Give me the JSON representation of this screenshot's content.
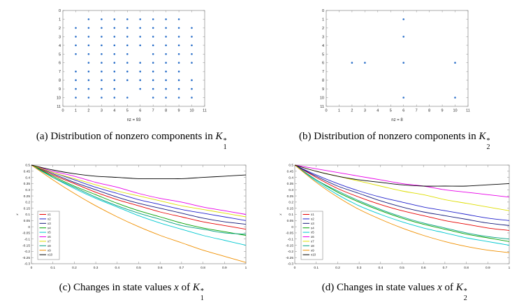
{
  "page": {
    "background": "#ffffff"
  },
  "captions": {
    "a": {
      "prefix": "(a) Distribution of nonzero components in ",
      "symbol": "K",
      "sup": "*",
      "sub": "1"
    },
    "b": {
      "prefix": "(b) Distribution of nonzero components in ",
      "symbol": "K",
      "sup": "*",
      "sub": "2"
    },
    "c": {
      "prefix": "(c) Changes in state values ",
      "var": "x",
      "mid": " of ",
      "symbol": "K",
      "sup": "*",
      "sub": "1"
    },
    "d": {
      "prefix": "(d) Changes in state values ",
      "var": "x",
      "mid": " of ",
      "symbol": "K",
      "sup": "*",
      "sub": "2"
    }
  },
  "chart_data": [
    {
      "id": "spy-k1",
      "type": "scatter",
      "title": "",
      "xlabel": "nz = 93",
      "ylabel": "",
      "xlim": [
        0,
        11
      ],
      "ylim": [
        0,
        11
      ],
      "y_inverted": true,
      "grid": false,
      "xticks": [
        0,
        1,
        2,
        3,
        4,
        5,
        6,
        7,
        8,
        9,
        10,
        11
      ],
      "yticks": [
        0,
        1,
        2,
        3,
        4,
        5,
        6,
        7,
        8,
        9,
        10,
        11
      ],
      "marker_color": "#2a6fc9",
      "points": [
        [
          2,
          1
        ],
        [
          3,
          1
        ],
        [
          4,
          1
        ],
        [
          5,
          1
        ],
        [
          6,
          1
        ],
        [
          7,
          1
        ],
        [
          8,
          1
        ],
        [
          9,
          1
        ],
        [
          1,
          2
        ],
        [
          2,
          2
        ],
        [
          3,
          2
        ],
        [
          4,
          2
        ],
        [
          5,
          2
        ],
        [
          6,
          2
        ],
        [
          7,
          2
        ],
        [
          8,
          2
        ],
        [
          9,
          2
        ],
        [
          10,
          2
        ],
        [
          1,
          3
        ],
        [
          2,
          3
        ],
        [
          3,
          3
        ],
        [
          4,
          3
        ],
        [
          5,
          3
        ],
        [
          6,
          3
        ],
        [
          7,
          3
        ],
        [
          8,
          3
        ],
        [
          9,
          3
        ],
        [
          10,
          3
        ],
        [
          1,
          4
        ],
        [
          2,
          4
        ],
        [
          3,
          4
        ],
        [
          4,
          4
        ],
        [
          5,
          4
        ],
        [
          6,
          4
        ],
        [
          7,
          4
        ],
        [
          8,
          4
        ],
        [
          9,
          4
        ],
        [
          10,
          4
        ],
        [
          1,
          5
        ],
        [
          2,
          5
        ],
        [
          3,
          5
        ],
        [
          4,
          5
        ],
        [
          5,
          5
        ],
        [
          7,
          5
        ],
        [
          8,
          5
        ],
        [
          9,
          5
        ],
        [
          10,
          5
        ],
        [
          2,
          6
        ],
        [
          3,
          6
        ],
        [
          4,
          6
        ],
        [
          5,
          6
        ],
        [
          6,
          6
        ],
        [
          7,
          6
        ],
        [
          8,
          6
        ],
        [
          9,
          6
        ],
        [
          10,
          6
        ],
        [
          1,
          7
        ],
        [
          2,
          7
        ],
        [
          3,
          7
        ],
        [
          4,
          7
        ],
        [
          5,
          7
        ],
        [
          6,
          7
        ],
        [
          7,
          7
        ],
        [
          8,
          7
        ],
        [
          9,
          7
        ],
        [
          1,
          8
        ],
        [
          2,
          8
        ],
        [
          3,
          8
        ],
        [
          4,
          8
        ],
        [
          5,
          8
        ],
        [
          6,
          8
        ],
        [
          7,
          8
        ],
        [
          8,
          8
        ],
        [
          9,
          8
        ],
        [
          10,
          8
        ],
        [
          1,
          9
        ],
        [
          2,
          9
        ],
        [
          3,
          9
        ],
        [
          4,
          9
        ],
        [
          6,
          9
        ],
        [
          7,
          9
        ],
        [
          8,
          9
        ],
        [
          9,
          9
        ],
        [
          10,
          9
        ],
        [
          1,
          10
        ],
        [
          2,
          10
        ],
        [
          3,
          10
        ],
        [
          4,
          10
        ],
        [
          5,
          10
        ],
        [
          7,
          10
        ],
        [
          8,
          10
        ],
        [
          9,
          10
        ],
        [
          10,
          10
        ]
      ]
    },
    {
      "id": "spy-k2",
      "type": "scatter",
      "title": "",
      "xlabel": "nz = 8",
      "ylabel": "",
      "xlim": [
        0,
        11
      ],
      "ylim": [
        0,
        11
      ],
      "y_inverted": true,
      "grid": false,
      "xticks": [
        0,
        1,
        2,
        3,
        4,
        5,
        6,
        7,
        8,
        9,
        10,
        11
      ],
      "yticks": [
        0,
        1,
        2,
        3,
        4,
        5,
        6,
        7,
        8,
        9,
        10,
        11
      ],
      "marker_color": "#2a6fc9",
      "points": [
        [
          6,
          1
        ],
        [
          6,
          3
        ],
        [
          2,
          6
        ],
        [
          3,
          6
        ],
        [
          6,
          6
        ],
        [
          10,
          6
        ],
        [
          6,
          10
        ],
        [
          10,
          10
        ]
      ]
    },
    {
      "id": "states-k1",
      "type": "line",
      "title": "",
      "xlabel": "",
      "ylabel": "x",
      "xlim": [
        0,
        1
      ],
      "ylim": [
        -0.3,
        0.5
      ],
      "grid": false,
      "legend_position": "lower-left",
      "xticks": [
        0,
        0.1,
        0.2,
        0.3,
        0.4,
        0.5,
        0.6,
        0.7,
        0.8,
        0.9,
        1
      ],
      "yticks": [
        0.5,
        0.45,
        0.4,
        0.35,
        0.3,
        0.25,
        0.2,
        0.15,
        0.1,
        0.05,
        0,
        -0.05,
        -0.1,
        -0.15,
        -0.2,
        -0.25,
        -0.3
      ],
      "x": [
        0,
        0.1,
        0.2,
        0.3,
        0.4,
        0.5,
        0.6,
        0.7,
        0.8,
        0.9,
        1
      ],
      "series": [
        {
          "name": "x1",
          "color": "#e60000",
          "values": [
            0.5,
            0.42,
            0.35,
            0.28,
            0.22,
            0.17,
            0.12,
            0.08,
            0.04,
            0.01,
            -0.02
          ]
        },
        {
          "name": "x2",
          "color": "#2222cc",
          "values": [
            0.5,
            0.44,
            0.38,
            0.32,
            0.27,
            0.22,
            0.18,
            0.14,
            0.11,
            0.08,
            0.05
          ]
        },
        {
          "name": "x3",
          "color": "#151a7a",
          "values": [
            0.5,
            0.43,
            0.36,
            0.3,
            0.24,
            0.19,
            0.15,
            0.11,
            0.07,
            0.04,
            0.02
          ]
        },
        {
          "name": "x4",
          "color": "#00a000",
          "values": [
            0.5,
            0.41,
            0.33,
            0.26,
            0.19,
            0.13,
            0.08,
            0.03,
            -0.01,
            -0.04,
            -0.07
          ]
        },
        {
          "name": "x5",
          "color": "#00c8d0",
          "values": [
            0.5,
            0.4,
            0.31,
            0.23,
            0.16,
            0.09,
            0.03,
            -0.02,
            -0.07,
            -0.11,
            -0.15
          ]
        },
        {
          "name": "x6",
          "color": "#e800e8",
          "values": [
            0.5,
            0.45,
            0.41,
            0.36,
            0.32,
            0.27,
            0.23,
            0.2,
            0.16,
            0.13,
            0.1
          ]
        },
        {
          "name": "x7",
          "color": "#dede00",
          "values": [
            0.5,
            0.44,
            0.39,
            0.34,
            0.29,
            0.25,
            0.21,
            0.17,
            0.14,
            0.11,
            0.08
          ]
        },
        {
          "name": "x8",
          "color": "#00a080",
          "values": [
            0.5,
            0.4,
            0.32,
            0.24,
            0.17,
            0.11,
            0.06,
            0.01,
            -0.02,
            -0.05,
            -0.06
          ]
        },
        {
          "name": "x9",
          "color": "#f09000",
          "values": [
            0.5,
            0.38,
            0.27,
            0.17,
            0.08,
            0.0,
            -0.07,
            -0.13,
            -0.19,
            -0.24,
            -0.29
          ]
        },
        {
          "name": "x10",
          "color": "#000000",
          "values": [
            0.5,
            0.46,
            0.43,
            0.41,
            0.4,
            0.39,
            0.39,
            0.39,
            0.4,
            0.41,
            0.42
          ]
        }
      ]
    },
    {
      "id": "states-k2",
      "type": "line",
      "title": "",
      "xlabel": "",
      "ylabel": "x",
      "xlim": [
        0,
        1
      ],
      "ylim": [
        -0.3,
        0.5
      ],
      "grid": false,
      "legend_position": "lower-left",
      "xticks": [
        0,
        0.1,
        0.2,
        0.3,
        0.4,
        0.5,
        0.6,
        0.7,
        0.8,
        0.9,
        1
      ],
      "yticks": [
        0.5,
        0.45,
        0.4,
        0.35,
        0.3,
        0.25,
        0.2,
        0.15,
        0.1,
        0.05,
        0,
        -0.05,
        -0.1,
        -0.15,
        -0.2,
        -0.25,
        -0.3
      ],
      "x": [
        0,
        0.1,
        0.2,
        0.3,
        0.4,
        0.5,
        0.6,
        0.7,
        0.8,
        0.9,
        1
      ],
      "series": [
        {
          "name": "x1",
          "color": "#e60000",
          "values": [
            0.5,
            0.4,
            0.31,
            0.24,
            0.18,
            0.13,
            0.09,
            0.05,
            0.02,
            -0.01,
            -0.03
          ]
        },
        {
          "name": "x2",
          "color": "#2222cc",
          "values": [
            0.5,
            0.42,
            0.35,
            0.29,
            0.24,
            0.2,
            0.16,
            0.13,
            0.1,
            0.07,
            0.05
          ]
        },
        {
          "name": "x3",
          "color": "#151a7a",
          "values": [
            0.5,
            0.41,
            0.33,
            0.27,
            0.21,
            0.16,
            0.12,
            0.09,
            0.06,
            0.03,
            0.01
          ]
        },
        {
          "name": "x4",
          "color": "#00a000",
          "values": [
            0.5,
            0.38,
            0.28,
            0.2,
            0.13,
            0.07,
            0.02,
            -0.02,
            -0.06,
            -0.09,
            -0.12
          ]
        },
        {
          "name": "x5",
          "color": "#00c8d0",
          "values": [
            0.5,
            0.37,
            0.26,
            0.17,
            0.1,
            0.04,
            -0.01,
            -0.05,
            -0.09,
            -0.12,
            -0.15
          ]
        },
        {
          "name": "x6",
          "color": "#e800e8",
          "values": [
            0.5,
            0.47,
            0.44,
            0.41,
            0.38,
            0.35,
            0.33,
            0.3,
            0.28,
            0.26,
            0.24
          ]
        },
        {
          "name": "x7",
          "color": "#dede00",
          "values": [
            0.5,
            0.45,
            0.41,
            0.37,
            0.33,
            0.29,
            0.26,
            0.22,
            0.19,
            0.16,
            0.13
          ]
        },
        {
          "name": "x8",
          "color": "#00a080",
          "values": [
            0.5,
            0.38,
            0.29,
            0.21,
            0.14,
            0.08,
            0.03,
            -0.01,
            -0.05,
            -0.08,
            -0.1
          ]
        },
        {
          "name": "x9",
          "color": "#f09000",
          "values": [
            0.5,
            0.36,
            0.24,
            0.14,
            0.06,
            -0.01,
            -0.07,
            -0.12,
            -0.16,
            -0.19,
            -0.21
          ]
        },
        {
          "name": "x10",
          "color": "#000000",
          "values": [
            0.5,
            0.45,
            0.41,
            0.38,
            0.36,
            0.34,
            0.33,
            0.33,
            0.33,
            0.34,
            0.35
          ]
        }
      ]
    }
  ]
}
